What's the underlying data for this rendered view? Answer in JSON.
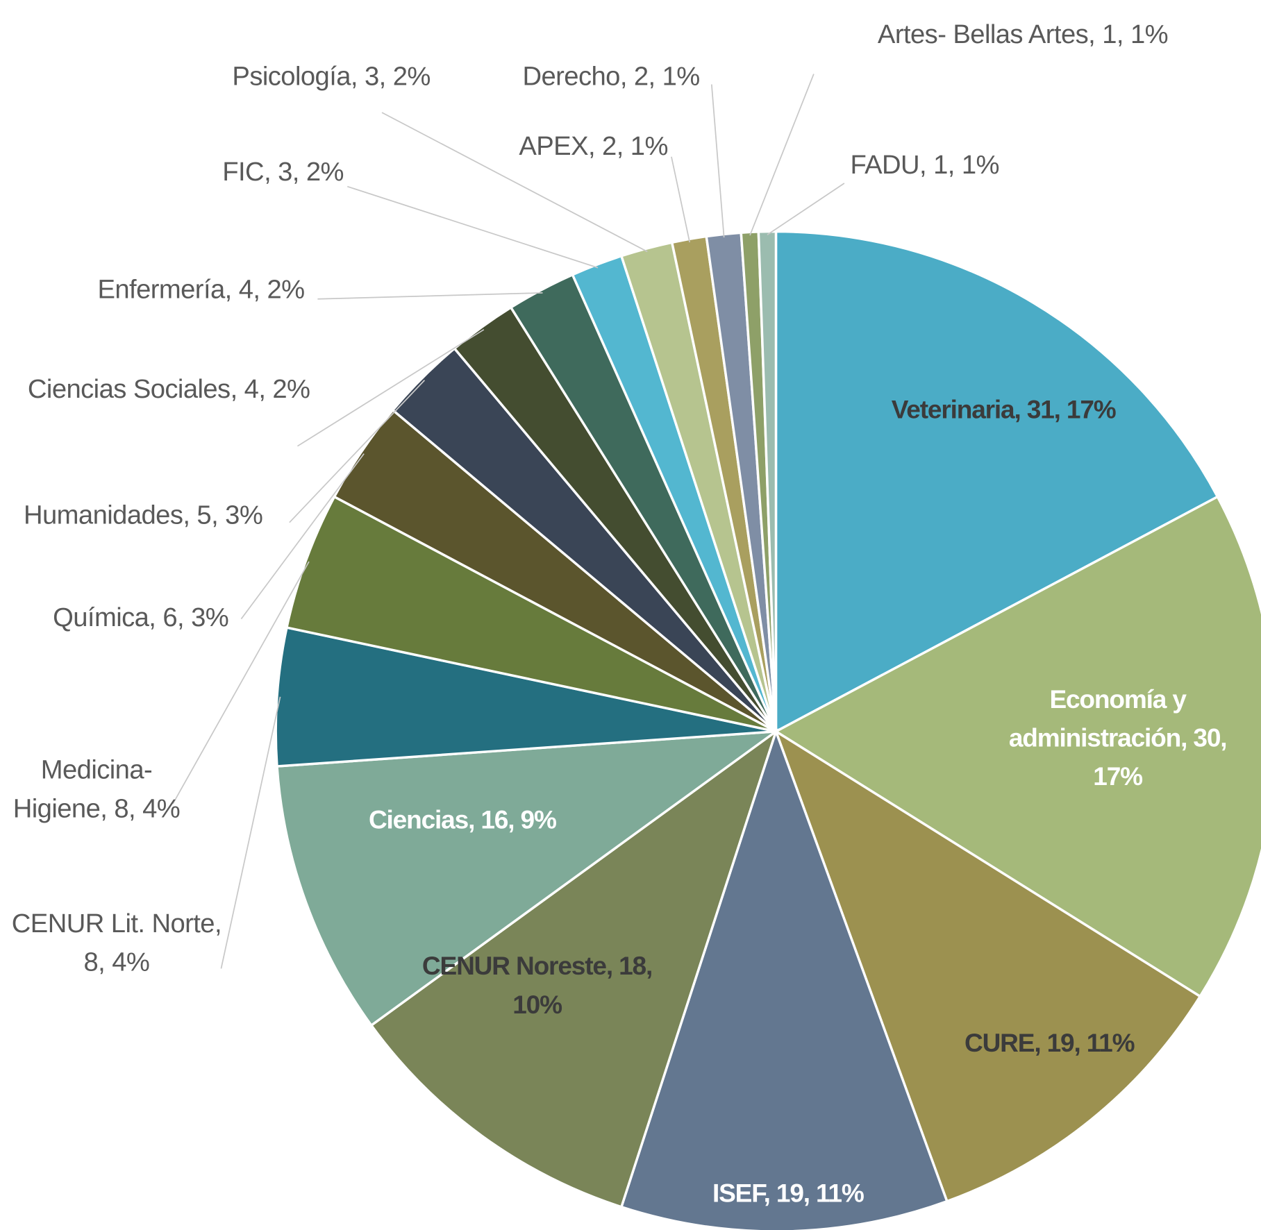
{
  "chart_data": {
    "type": "pie",
    "categories": [
      "Veterinaria, 31, 17%",
      "Economía y administración, 30, 17%",
      "CURE, 19, 11%",
      "ISEF, 19, 11%",
      "CENUR Noreste, 18, 10%",
      "Ciencias, 16, 9%",
      "CENUR Lit. Norte, 8, 4%",
      "Medicina-Higiene, 8, 4%",
      "Química, 6, 3%",
      "Humanidades, 5, 3%",
      "Ciencias Sociales, 4, 2%",
      "Enfermería, 4, 2%",
      "FIC, 3, 2%",
      "Psicología, 3, 2%",
      "APEX, 2, 1%",
      "Derecho, 2, 1%",
      "Artes- Bellas Artes, 1, 1%",
      "FADU, 1, 1%"
    ],
    "values": [
      31,
      30,
      19,
      19,
      18,
      16,
      8,
      8,
      6,
      5,
      4,
      4,
      3,
      3,
      2,
      2,
      1,
      1
    ],
    "colors": [
      "#4bacc6",
      "#a5b97a",
      "#9c9150",
      "#637790",
      "#7a8558",
      "#7faa98",
      "#246f80",
      "#677b3c",
      "#5b552d",
      "#3a4556",
      "#444d30",
      "#3f6a5c",
      "#53b7d0",
      "#b6c48f",
      "#a99f5f",
      "#7f8ea5",
      "#8ea068",
      "#9bbcaf"
    ]
  }
}
